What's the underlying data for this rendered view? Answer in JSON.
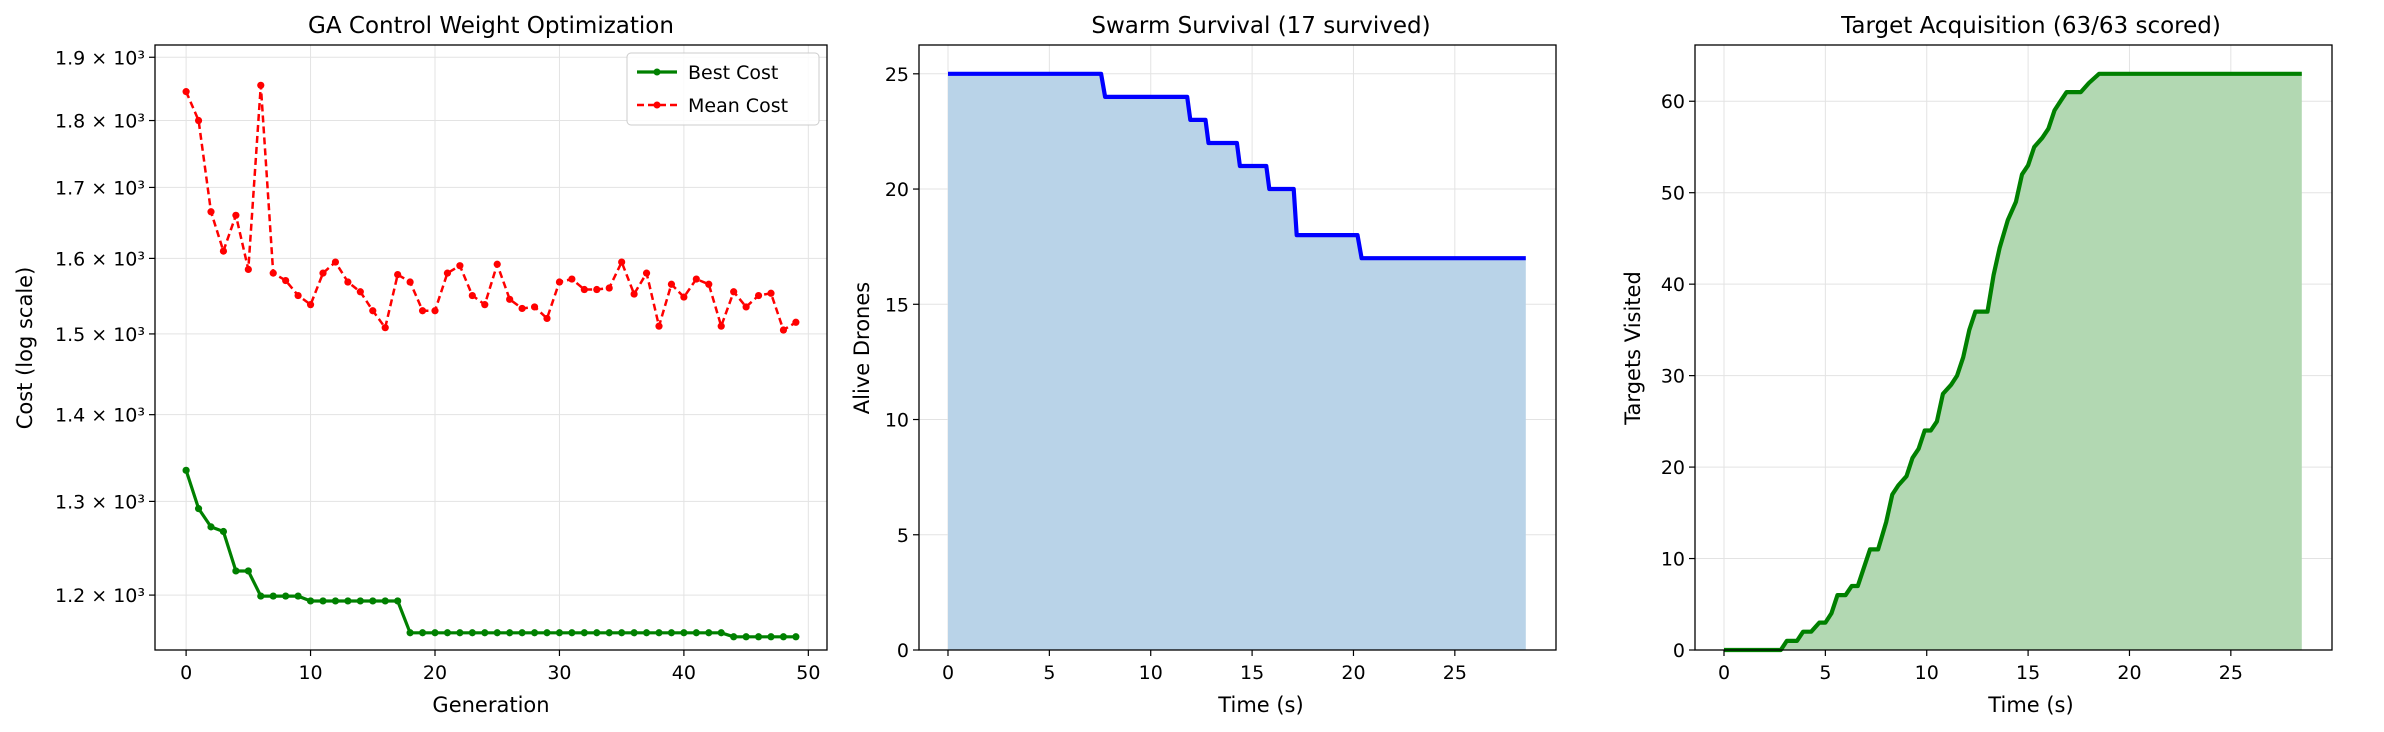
{
  "chart_data": [
    {
      "type": "line",
      "title": "GA Control Weight Optimization",
      "xlabel": "Generation",
      "ylabel": "Cost (log scale)",
      "yscale": "log",
      "xlim": [
        -2.5,
        51.5
      ],
      "ylim": [
        1145,
        1920
      ],
      "grid": true,
      "legend_position": "top-right",
      "xticks": [
        0,
        10,
        20,
        30,
        40,
        50
      ],
      "xtick_labels": [
        "0",
        "10",
        "20",
        "30",
        "40",
        "50"
      ],
      "yticks": [
        1200,
        1300,
        1400,
        1500,
        1600,
        1700,
        1800,
        1900
      ],
      "ytick_labels": [
        "1.2 × 10³",
        "1.3 × 10³",
        "1.4 × 10³",
        "1.5 × 10³",
        "1.6 × 10³",
        "1.7 × 10³",
        "1.8 × 10³",
        "1.9 × 10³"
      ],
      "x": [
        0,
        1,
        2,
        3,
        4,
        5,
        6,
        7,
        8,
        9,
        10,
        11,
        12,
        13,
        14,
        15,
        16,
        17,
        18,
        19,
        20,
        21,
        22,
        23,
        24,
        25,
        26,
        27,
        28,
        29,
        30,
        31,
        32,
        33,
        34,
        35,
        36,
        37,
        38,
        39,
        40,
        41,
        42,
        43,
        44,
        45,
        46,
        47,
        48,
        49
      ],
      "series": [
        {
          "name": "Best Cost",
          "color": "#008000",
          "style": "solid",
          "values": [
            1335,
            1292,
            1272,
            1267,
            1225,
            1225,
            1199,
            1199,
            1199,
            1199,
            1194,
            1194,
            1194,
            1194,
            1194,
            1194,
            1194,
            1194,
            1162,
            1162,
            1162,
            1162,
            1162,
            1162,
            1162,
            1162,
            1162,
            1162,
            1162,
            1162,
            1162,
            1162,
            1162,
            1162,
            1162,
            1162,
            1162,
            1162,
            1162,
            1162,
            1162,
            1162,
            1162,
            1162,
            1158,
            1158,
            1158,
            1158,
            1158,
            1158
          ]
        },
        {
          "name": "Mean Cost",
          "color": "#ff0000",
          "style": "dashed",
          "values": [
            1845,
            1800,
            1665,
            1610,
            1660,
            1585,
            1855,
            1580,
            1570,
            1550,
            1538,
            1580,
            1595,
            1568,
            1555,
            1530,
            1508,
            1578,
            1568,
            1530,
            1530,
            1580,
            1590,
            1550,
            1538,
            1592,
            1545,
            1533,
            1535,
            1520,
            1568,
            1572,
            1558,
            1558,
            1560,
            1595,
            1552,
            1580,
            1510,
            1565,
            1548,
            1572,
            1565,
            1510,
            1555,
            1535,
            1550,
            1553,
            1505,
            1515
          ]
        }
      ]
    },
    {
      "type": "area",
      "title": "Swarm Survival (17 survived)",
      "xlabel": "Time (s)",
      "ylabel": "Alive Drones",
      "xlim": [
        -1.43,
        29.99
      ],
      "ylim": [
        0,
        26.25
      ],
      "grid": true,
      "xticks": [
        0,
        5,
        10,
        15,
        20,
        25
      ],
      "xtick_labels": [
        "0",
        "5",
        "10",
        "15",
        "20",
        "25"
      ],
      "yticks": [
        0,
        5,
        10,
        15,
        20,
        25
      ],
      "ytick_labels": [
        "0",
        "5",
        "10",
        "15",
        "20",
        "25"
      ],
      "fill_color": "#b9d3e8",
      "line_color": "#0000ff",
      "x": [
        0,
        7.55,
        7.75,
        11.8,
        11.95,
        12.7,
        12.85,
        14.25,
        14.4,
        15.7,
        15.85,
        17.05,
        17.2,
        20.2,
        20.4,
        28.5
      ],
      "y": [
        25,
        25,
        24,
        24,
        23,
        23,
        22,
        22,
        21,
        21,
        20,
        20,
        18,
        18,
        17,
        17
      ]
    },
    {
      "type": "area",
      "title": "Target Acquisition (63/63 scored)",
      "xlabel": "Time (s)",
      "ylabel": "Targets Visited",
      "xlim": [
        -1.43,
        29.99
      ],
      "ylim": [
        0,
        66.15
      ],
      "grid": true,
      "xticks": [
        0,
        5,
        10,
        15,
        20,
        25
      ],
      "xtick_labels": [
        "0",
        "5",
        "10",
        "15",
        "20",
        "25"
      ],
      "yticks": [
        0,
        10,
        20,
        30,
        40,
        50,
        60
      ],
      "ytick_labels": [
        "0",
        "10",
        "20",
        "30",
        "40",
        "50",
        "60"
      ],
      "fill_color": "#b2d8b2",
      "line_color": "#008000",
      "x": [
        0,
        2.8,
        3.1,
        3.6,
        3.9,
        4.3,
        4.7,
        5.0,
        5.3,
        5.6,
        6.0,
        6.3,
        6.6,
        6.9,
        7.2,
        7.6,
        8.0,
        8.3,
        8.6,
        9.0,
        9.3,
        9.6,
        9.9,
        10.2,
        10.5,
        10.8,
        11.2,
        11.5,
        11.8,
        12.1,
        12.4,
        12.7,
        13.0,
        13.3,
        13.6,
        14.0,
        14.4,
        14.7,
        15.0,
        15.3,
        15.7,
        16.0,
        16.3,
        16.6,
        16.9,
        17.2,
        17.6,
        18.0,
        18.5,
        28.5
      ],
      "y": [
        0,
        0,
        1,
        1,
        2,
        2,
        3,
        3,
        4,
        6,
        6,
        7,
        7,
        9,
        11,
        11,
        14,
        17,
        18,
        19,
        21,
        22,
        24,
        24,
        25,
        28,
        29,
        30,
        32,
        35,
        37,
        37,
        37,
        41,
        44,
        47,
        49,
        52,
        53,
        55,
        56,
        57,
        59,
        60,
        61,
        61,
        61,
        62,
        63,
        63
      ]
    }
  ]
}
